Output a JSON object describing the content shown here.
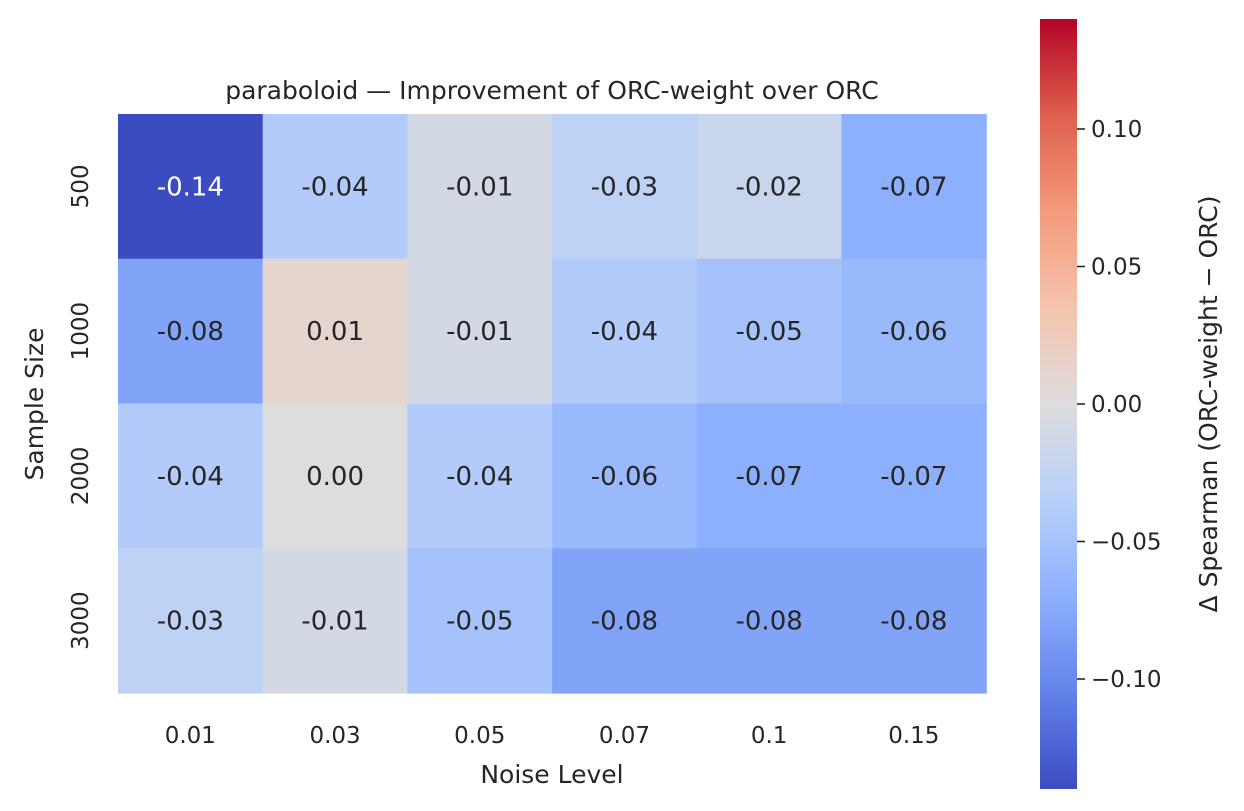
{
  "chart_data": {
    "type": "heatmap",
    "title": "paraboloid — Improvement of ORC-weight over ORC",
    "xlabel": "Noise Level",
    "ylabel": "Sample Size",
    "x_categories": [
      "0.01",
      "0.03",
      "0.05",
      "0.07",
      "0.1",
      "0.15"
    ],
    "y_categories": [
      "500",
      "1000",
      "2000",
      "3000"
    ],
    "values": [
      [
        -0.14,
        -0.04,
        -0.01,
        -0.03,
        -0.02,
        -0.07
      ],
      [
        -0.08,
        0.01,
        -0.01,
        -0.04,
        -0.05,
        -0.06
      ],
      [
        -0.04,
        0.0,
        -0.04,
        -0.06,
        -0.07,
        -0.07
      ],
      [
        -0.03,
        -0.01,
        -0.05,
        -0.08,
        -0.08,
        -0.08
      ]
    ],
    "colorbar": {
      "label": "Δ Spearman (ORC-weight − ORC)",
      "colormap": "coolwarm",
      "vmin": -0.14,
      "vmax": 0.14,
      "ticks": [
        0.1,
        0.05,
        0.0,
        -0.05,
        -0.1
      ],
      "tick_labels": [
        "0.10",
        "0.05",
        "0.00",
        "−0.05",
        "−0.10"
      ]
    },
    "grid": false
  }
}
